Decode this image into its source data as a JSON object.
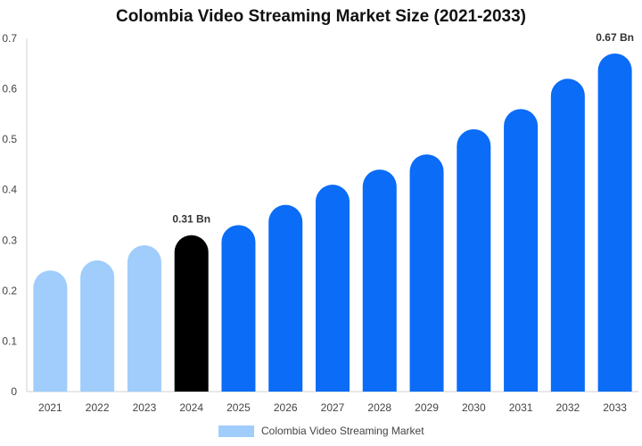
{
  "chart_data": {
    "type": "bar",
    "title": "Colombia Video Streaming Market Size (2021-2033)",
    "xlabel": "",
    "ylabel": "",
    "ylim": [
      0,
      0.7
    ],
    "yticks": [
      "0",
      "0.1",
      "0.2",
      "0.3",
      "0.4",
      "0.5",
      "0.6",
      "0.7"
    ],
    "categories": [
      "2021",
      "2022",
      "2023",
      "2024",
      "2025",
      "2026",
      "2027",
      "2028",
      "2029",
      "2030",
      "2031",
      "2032",
      "2033"
    ],
    "series": [
      {
        "name": "Colombia Video Streaming Market",
        "values": [
          0.24,
          0.26,
          0.29,
          0.31,
          0.33,
          0.37,
          0.41,
          0.44,
          0.47,
          0.52,
          0.56,
          0.62,
          0.67
        ]
      }
    ],
    "data_labels": [
      {
        "category": "2024",
        "text": "0.31 Bn"
      },
      {
        "category": "2033",
        "text": "0.67 Bn"
      }
    ],
    "legend_position": "bottom",
    "grid": false
  },
  "colors": {
    "historical": "#a0cdfb",
    "base_year": "#000000",
    "forecast": "#0a6cf7",
    "axis": "#d0d0d0"
  }
}
